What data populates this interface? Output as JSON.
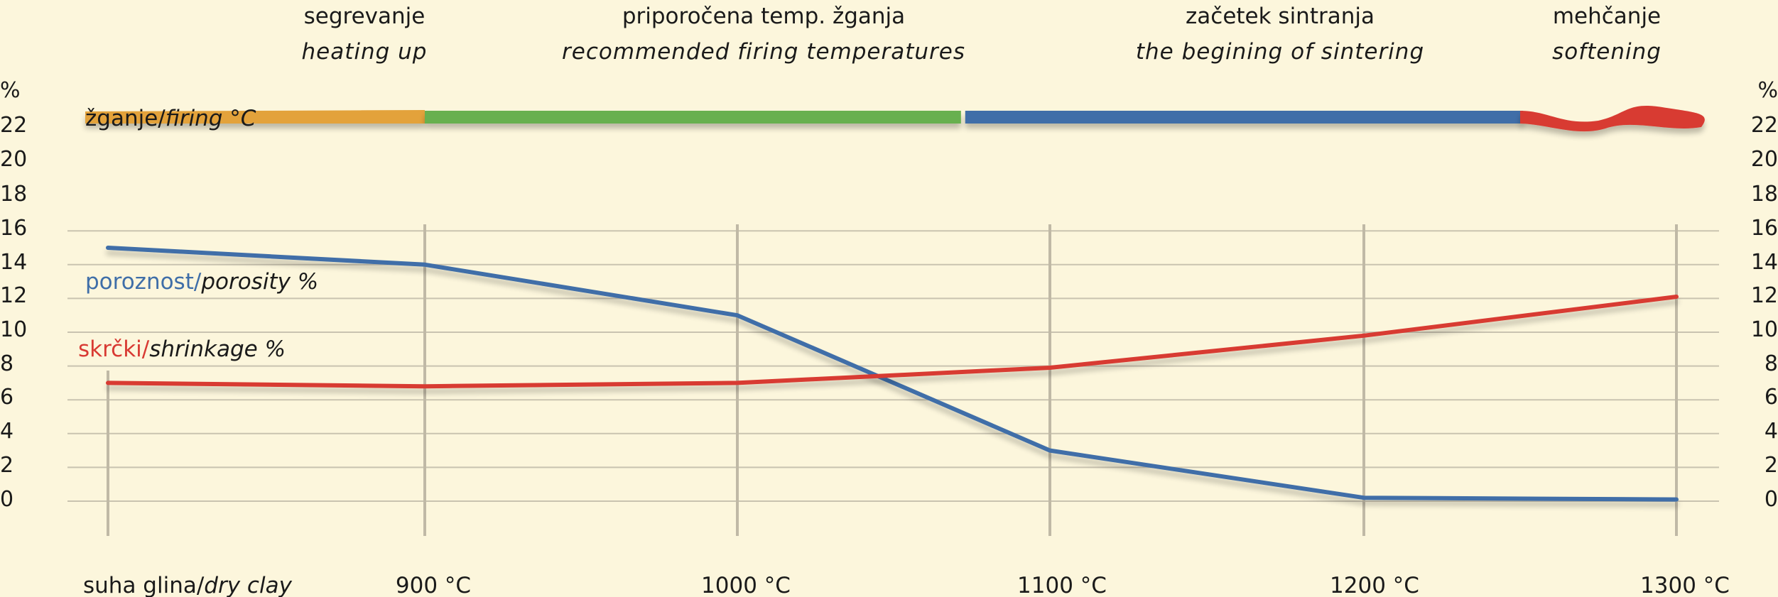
{
  "phases": [
    {
      "name": "segrevanje",
      "name_en": "heating up",
      "color": "#e3a23a",
      "x_from": 800,
      "x_to": 900
    },
    {
      "name": "priporočena temp. žganja",
      "name_en": "recommended firing temperatures",
      "color": "#68b04f",
      "x_from": 900,
      "x_to": 1072
    },
    {
      "name": "začetek sintranja",
      "name_en": "the begining of sintering",
      "color": "#3f6ea8",
      "x_from": 1072,
      "x_to": 1250
    },
    {
      "name": "mehčanje",
      "name_en": "softening",
      "color": "#d83a33",
      "x_from": 1250,
      "x_to": 1310
    }
  ],
  "firing_label": {
    "main": "žganje/",
    "italic": "firing °C"
  },
  "y_axis_unit": "%",
  "chart_data": {
    "type": "line",
    "categories": [
      "suha glina/dry clay",
      "900 °C",
      "1000 °C",
      "1100 °C",
      "1200 °C",
      "1300 °C"
    ],
    "x": [
      800,
      900,
      1000,
      1100,
      1200,
      1300
    ],
    "x_labels": [
      {
        "main": "suha glina/",
        "italic": "dry clay"
      },
      {
        "main": "900 °C",
        "italic": ""
      },
      {
        "main": "1000 °C",
        "italic": ""
      },
      {
        "main": "1100 °C",
        "italic": ""
      },
      {
        "main": "1200 °C",
        "italic": ""
      },
      {
        "main": "1300 °C",
        "italic": ""
      }
    ],
    "series": [
      {
        "name": "poroznost/porosity %",
        "label_main": "poroznost/",
        "label_italic": "porosity %",
        "color": "#3f6ea8",
        "x": [
          800,
          900,
          1000,
          1100,
          1200,
          1300
        ],
        "values": [
          15,
          14,
          11,
          3,
          0.2,
          0.1
        ]
      },
      {
        "name": "skrčki/shrinkage %",
        "label_main": "skrčki/",
        "label_italic": "shrinkage %",
        "color": "#d83a33",
        "x": [
          800,
          900,
          1000,
          1100,
          1200,
          1300
        ],
        "values": [
          7,
          6.8,
          7,
          7.9,
          9.8,
          12.1
        ]
      }
    ],
    "ylim": [
      0,
      22
    ],
    "yticks": [
      "%",
      "22",
      "20",
      "18",
      "16",
      "14",
      "12",
      "10",
      "8",
      "6",
      "4",
      "2",
      "0"
    ],
    "grid": true,
    "grid_lines": [
      0,
      2,
      4,
      6,
      8,
      10,
      12,
      14,
      16
    ],
    "legend": "inline-left"
  }
}
